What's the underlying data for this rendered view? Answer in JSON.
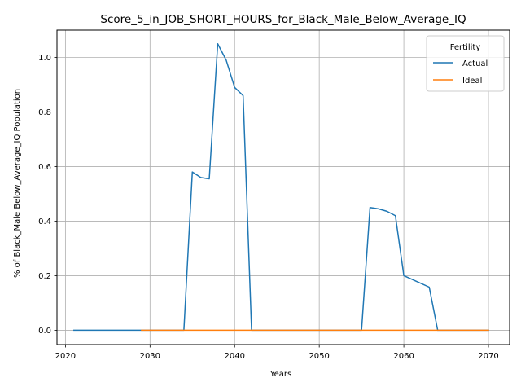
{
  "chart_data": {
    "type": "line",
    "title": "Score_5_in_JOB_SHORT_HOURS_for_Black_Male_Below_Average_IQ",
    "xlabel": "Years",
    "ylabel": "% of Black_Male Below_Average_IQ Population",
    "xlim": [
      2019,
      2072.5
    ],
    "ylim": [
      -0.0525,
      1.1
    ],
    "xticks": [
      2020,
      2030,
      2040,
      2050,
      2060,
      2070
    ],
    "yticks": [
      0.0,
      0.2,
      0.4,
      0.6,
      0.8,
      1.0
    ],
    "xtick_labels": [
      "2020",
      "2030",
      "2040",
      "2050",
      "2060",
      "2070"
    ],
    "ytick_labels": [
      "0.0",
      "0.2",
      "0.4",
      "0.6",
      "0.8",
      "1.0"
    ],
    "grid": true,
    "legend": {
      "title": "Fertility",
      "placement": "top-right"
    },
    "series": [
      {
        "name": "Actual",
        "color": "#1f77b4",
        "x": [
          2021,
          2029,
          2034,
          2035,
          2036,
          2037,
          2038,
          2039,
          2040,
          2041,
          2042,
          2055,
          2056,
          2057,
          2058,
          2059,
          2060,
          2061,
          2062,
          2063,
          2064,
          2070
        ],
        "values": [
          0.0,
          0.0,
          0.0,
          0.58,
          0.56,
          0.555,
          1.05,
          0.99,
          0.89,
          0.86,
          0.0,
          0.0,
          0.45,
          0.445,
          0.436,
          0.42,
          0.2,
          0.186,
          0.172,
          0.158,
          0.0,
          0.0
        ]
      },
      {
        "name": "Ideal",
        "color": "#ff7f0e",
        "x": [
          2029,
          2070
        ],
        "values": [
          0.0,
          0.0
        ]
      }
    ]
  }
}
